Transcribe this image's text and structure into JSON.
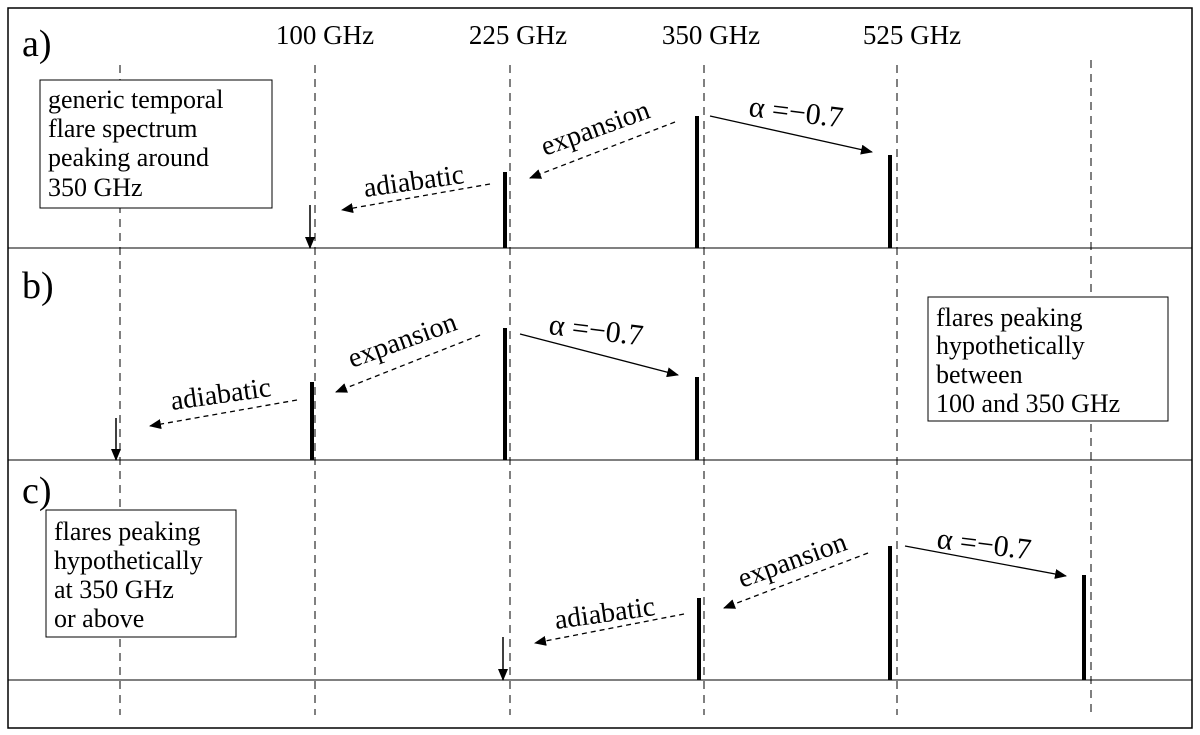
{
  "frequencies": [
    "100 GHz",
    "225 GHz",
    "350 GHz",
    "525 GHz"
  ],
  "panels": {
    "a": {
      "label": "a)",
      "box_lines": [
        "generic temporal",
        "flare spectrum",
        "peaking around",
        "350 GHz"
      ],
      "adiabatic": "adiabatic",
      "expansion": "expansion",
      "alpha": "α =−0.7"
    },
    "b": {
      "label": "b)",
      "box_lines": [
        "flares peaking",
        "hypothetically",
        "between",
        "100 and 350 GHz"
      ],
      "adiabatic": "adiabatic",
      "expansion": "expansion",
      "alpha": "α =−0.7"
    },
    "c": {
      "label": "c)",
      "box_lines": [
        "flares peaking",
        "hypothetically",
        "at 350 GHz",
        "or above"
      ],
      "adiabatic": "adiabatic",
      "expansion": "expansion",
      "alpha": "α =−0.7"
    }
  },
  "colors": {
    "line": "#000000",
    "background": "#ffffff"
  }
}
